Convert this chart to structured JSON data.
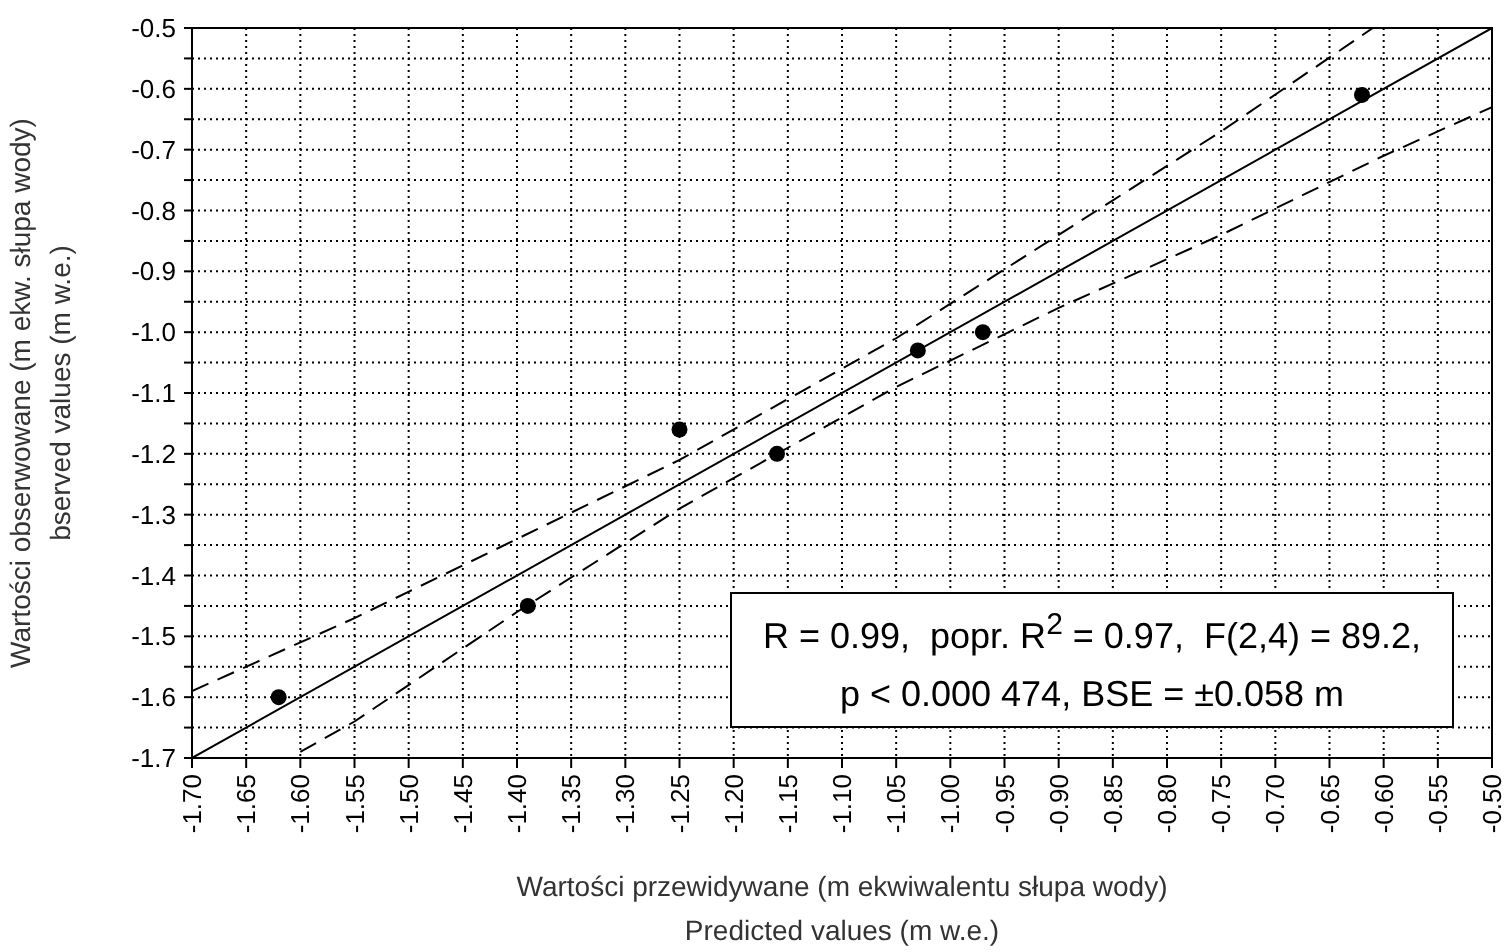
{
  "chart_data": {
    "type": "scatter",
    "xlabel": "Wartości przewidywane (m ekwiwalentu słupa wody)\nPredicted values (m w.e.)",
    "ylabel": "Wartości obserwowane (m ekw. słupa wody)\nbserved values (m w.e.)",
    "xlim": [
      -1.7,
      -0.5
    ],
    "ylim": [
      -1.7,
      -0.5
    ],
    "xticks": [
      {
        "value": -1.7,
        "label": "-1.70"
      },
      {
        "value": -1.65,
        "label": "-1.65"
      },
      {
        "value": -1.6,
        "label": "-1.60"
      },
      {
        "value": -1.55,
        "label": "-1.55"
      },
      {
        "value": -1.5,
        "label": "-1.50"
      },
      {
        "value": -1.45,
        "label": "-1.45"
      },
      {
        "value": -1.4,
        "label": "-1.40"
      },
      {
        "value": -1.35,
        "label": "-1.35"
      },
      {
        "value": -1.3,
        "label": "-1.30"
      },
      {
        "value": -1.25,
        "label": "-1.25"
      },
      {
        "value": -1.2,
        "label": "-1.20"
      },
      {
        "value": -1.15,
        "label": "-1.15"
      },
      {
        "value": -1.1,
        "label": "-1.10"
      },
      {
        "value": -1.05,
        "label": "-1.05"
      },
      {
        "value": -1,
        "label": "-1.00"
      },
      {
        "value": -0.95,
        "label": "-0.95"
      },
      {
        "value": -0.9,
        "label": "-0.90"
      },
      {
        "value": -0.85,
        "label": "-0.85"
      },
      {
        "value": -0.8,
        "label": "-0.80"
      },
      {
        "value": -0.75,
        "label": "-0.75"
      },
      {
        "value": -0.7,
        "label": "-0.70"
      },
      {
        "value": -0.65,
        "label": "-0.65"
      },
      {
        "value": -0.6,
        "label": "-0.60"
      },
      {
        "value": -0.55,
        "label": "-0.55"
      },
      {
        "value": -0.5,
        "label": "-0.50"
      }
    ],
    "yticks": [
      -1.7,
      {
        "value": -1.65,
        "label": null
      },
      -1.6,
      {
        "value": -1.55,
        "label": null
      },
      -1.5,
      {
        "value": -1.45,
        "label": null
      },
      -1.4,
      {
        "value": -1.35,
        "label": null
      },
      -1.3,
      {
        "value": -1.25,
        "label": null
      },
      -1.2,
      {
        "value": -1.15,
        "label": null
      },
      -1.1,
      {
        "value": -1.05,
        "label": null
      },
      {
        "value": -1,
        "label": "-1.0"
      },
      {
        "value": -0.95,
        "label": null
      },
      -0.9,
      {
        "value": -0.85,
        "label": null
      },
      -0.8,
      {
        "value": -0.75,
        "label": null
      },
      -0.7,
      {
        "value": -0.65,
        "label": null
      },
      -0.6,
      {
        "value": -0.55,
        "label": null
      },
      -0.5
    ],
    "grid": true,
    "series": [
      {
        "color": "#000000",
        "marker": "circle",
        "x": [
          -1.62,
          -1.39,
          -1.25,
          -1.16,
          -1.03,
          -0.97,
          -0.62
        ],
        "values": [
          -1.6,
          -1.45,
          -1.16,
          -1.2,
          -1.03,
          -1.0,
          -0.61
        ]
      },
      {
        "type": "line",
        "color": "#000000",
        "line_style": "solid",
        "x": [
          -1.7,
          -0.5
        ],
        "values": [
          -1.7,
          -0.5
        ]
      },
      {
        "type": "line",
        "color": "#000000",
        "line_style": "dashed",
        "x": [
          -1.7,
          -1.55,
          -1.4,
          -1.25,
          -1.15,
          -1.05,
          -0.9,
          -0.75,
          -0.61
        ],
        "values": [
          -1.59,
          -1.47,
          -1.34,
          -1.21,
          -1.11,
          -1.01,
          -0.84,
          -0.67,
          -0.5
        ]
      },
      {
        "type": "line",
        "color": "#000000",
        "line_style": "dashed",
        "x": [
          -1.6,
          -1.55,
          -1.4,
          -1.25,
          -1.15,
          -1.05,
          -0.9,
          -0.75,
          -0.6,
          -0.5
        ],
        "values": [
          -1.69,
          -1.64,
          -1.46,
          -1.29,
          -1.19,
          -1.09,
          -0.96,
          -0.84,
          -0.71,
          -0.63
        ]
      }
    ],
    "annotations": [
      "R = 0.99,  popr. R$^{2}$ = 0.97,  F(2,4) = 89.2,",
      "p < 0.000 474, BSE = ±0.058 m"
    ]
  }
}
